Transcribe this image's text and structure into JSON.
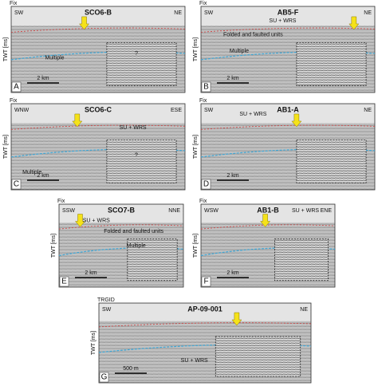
{
  "panels": [
    {
      "letter": "A",
      "title": "SCO6-B",
      "left": "SW",
      "right": "NE",
      "fix": "Fix",
      "axis": "TWT [ms]",
      "scale": "2 km",
      "labels": [
        "Multiple",
        "?"
      ]
    },
    {
      "letter": "B",
      "title": "AB5-F",
      "left": "SW",
      "right": "NE",
      "fix": "Fix",
      "axis": "TWT [ms]",
      "scale": "2 km",
      "labels": [
        "SU + WRS",
        "Folded and faulted units",
        "Multiple"
      ]
    },
    {
      "letter": "C",
      "title": "SCO6-C",
      "left": "WNW",
      "right": "ESE",
      "fix": "Fix",
      "axis": "TWT [ms]",
      "scale": "2 km",
      "labels": [
        "SU + WRS",
        "?",
        "Multiple"
      ]
    },
    {
      "letter": "D",
      "title": "AB1-A",
      "left": "SW",
      "right": "NE",
      "fix": "Fix",
      "axis": "TWT [ms]",
      "scale": "2 km",
      "labels": [
        "SU + WRS"
      ]
    },
    {
      "letter": "E",
      "title": "SCO7-B",
      "left": "SSW",
      "right": "NNE",
      "fix": "Fix",
      "axis": "TWT [ms]",
      "scale": "2 km",
      "labels": [
        "SU + WRS",
        "Folded and faulted units",
        "Multiple"
      ]
    },
    {
      "letter": "F",
      "title": "AB1-B",
      "left": "WSW",
      "right": "ENE",
      "fix": "Fix",
      "axis": "TWT [ms]",
      "scale": "2 km",
      "labels": [
        "SU + WRS"
      ]
    },
    {
      "letter": "G",
      "title": "AP-09-001",
      "left": "SW",
      "right": "NE",
      "fix": "TRGID",
      "axis": "TWT [ms]",
      "scale": "500 m",
      "labels": [
        "SU + WRS"
      ]
    }
  ]
}
